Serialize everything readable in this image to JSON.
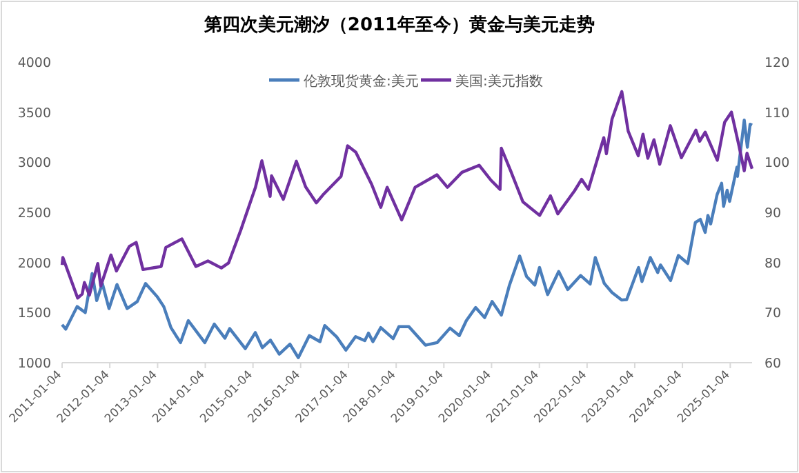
{
  "chart_data": {
    "type": "line",
    "title": "第四次美元潮汐（2011年至今）黄金与美元走势",
    "legend": "top",
    "grid": false,
    "marker": "none",
    "line_style": "solid",
    "xlim": [
      "2011-01-04",
      "2025-06-20"
    ],
    "xticks": [
      "2011-01-04",
      "2012-01-04",
      "2013-01-04",
      "2014-01-04",
      "2015-01-04",
      "2016-01-04",
      "2017-01-04",
      "2018-01-04",
      "2019-01-04",
      "2020-01-04",
      "2021-01-04",
      "2022-01-04",
      "2023-01-04",
      "2024-01-04",
      "2025-01-04"
    ],
    "ylim": [
      1000,
      4000
    ],
    "yticks": [
      1000,
      1500,
      2000,
      2500,
      3000,
      3500,
      4000
    ],
    "y2lim": [
      60,
      120
    ],
    "y2ticks": [
      60,
      70,
      80,
      90,
      100,
      110,
      120
    ],
    "series": [
      {
        "name": "伦敦现货黄金:美元",
        "color": "#4a7ebb",
        "x": [
          "2011-01-04",
          "2011-02-01",
          "2011-04-29",
          "2011-06-30",
          "2011-08-22",
          "2011-09-26",
          "2011-11-08",
          "2011-12-29",
          "2012-02-28",
          "2012-05-16",
          "2012-08-01",
          "2012-10-04",
          "2012-12-31",
          "2013-02-20",
          "2013-04-16",
          "2013-06-28",
          "2013-08-27",
          "2013-12-31",
          "2014-03-14",
          "2014-06-03",
          "2014-07-10",
          "2014-11-06",
          "2015-01-22",
          "2015-03-17",
          "2015-05-18",
          "2015-07-24",
          "2015-10-14",
          "2015-12-17",
          "2016-03-10",
          "2016-05-31",
          "2016-07-06",
          "2016-10-07",
          "2016-12-15",
          "2017-02-27",
          "2017-05-09",
          "2017-06-06",
          "2017-07-10",
          "2017-09-08",
          "2017-12-12",
          "2018-01-25",
          "2018-04-11",
          "2018-08-16",
          "2018-11-13",
          "2019-02-20",
          "2019-05-02",
          "2019-06-25",
          "2019-09-04",
          "2019-11-12",
          "2020-01-08",
          "2020-03-19",
          "2020-05-18",
          "2020-08-06",
          "2020-09-28",
          "2020-11-30",
          "2021-01-05",
          "2021-03-08",
          "2021-06-01",
          "2021-08-09",
          "2021-11-16",
          "2022-01-28",
          "2022-03-08",
          "2022-05-16",
          "2022-07-14",
          "2022-09-27",
          "2022-11-03",
          "2023-02-02",
          "2023-02-28",
          "2023-05-03",
          "2023-06-29",
          "2023-07-20",
          "2023-10-05",
          "2023-12-04",
          "2024-02-14",
          "2024-04-12",
          "2024-05-20",
          "2024-06-26",
          "2024-07-17",
          "2024-08-07",
          "2024-09-26",
          "2024-10-30",
          "2024-11-14",
          "2024-12-11",
          "2024-12-30",
          "2025-02-24",
          "2025-02-28",
          "2025-04-21",
          "2025-05-15",
          "2025-06-05",
          "2025-06-20"
        ],
        "values": [
          1380,
          1335,
          1560,
          1500,
          1890,
          1620,
          1790,
          1540,
          1780,
          1540,
          1610,
          1790,
          1660,
          1560,
          1350,
          1200,
          1420,
          1200,
          1385,
          1245,
          1340,
          1140,
          1300,
          1150,
          1225,
          1085,
          1185,
          1050,
          1270,
          1210,
          1370,
          1255,
          1125,
          1260,
          1220,
          1295,
          1210,
          1350,
          1240,
          1360,
          1360,
          1175,
          1200,
          1345,
          1270,
          1420,
          1550,
          1450,
          1610,
          1475,
          1765,
          2065,
          1860,
          1775,
          1950,
          1680,
          1910,
          1730,
          1870,
          1785,
          2050,
          1790,
          1700,
          1625,
          1630,
          1950,
          1810,
          2050,
          1900,
          1975,
          1820,
          2070,
          1990,
          2400,
          2430,
          2300,
          2470,
          2385,
          2680,
          2790,
          2560,
          2720,
          2610,
          2950,
          2860,
          3420,
          3150,
          3380,
          3370
        ]
      },
      {
        "name": "美国:美元指数",
        "color": "#7030a0",
        "axis": "y2",
        "x": [
          "2011-01-04",
          "2011-01-10",
          "2011-05-03",
          "2011-06-07",
          "2011-06-24",
          "2011-08-01",
          "2011-10-04",
          "2011-10-27",
          "2012-01-13",
          "2012-02-24",
          "2012-06-01",
          "2012-07-24",
          "2012-09-14",
          "2013-01-31",
          "2013-03-08",
          "2013-07-09",
          "2013-10-24",
          "2014-01-24",
          "2014-05-07",
          "2014-07-01",
          "2014-10-03",
          "2015-01-23",
          "2015-03-13",
          "2015-05-15",
          "2015-05-26",
          "2015-08-24",
          "2015-12-02",
          "2016-02-11",
          "2016-05-03",
          "2016-06-23",
          "2016-11-08",
          "2016-12-28",
          "2017-03-01",
          "2017-06-30",
          "2017-09-08",
          "2017-10-27",
          "2018-02-15",
          "2018-05-29",
          "2018-11-12",
          "2019-01-31",
          "2019-05-23",
          "2019-10-01",
          "2019-12-31",
          "2020-03-09",
          "2020-03-19",
          "2020-05-29",
          "2020-08-31",
          "2021-01-06",
          "2021-03-30",
          "2021-05-25",
          "2021-09-30",
          "2021-11-23",
          "2022-01-14",
          "2022-05-12",
          "2022-06-01",
          "2022-07-14",
          "2022-09-27",
          "2022-11-15",
          "2023-01-31",
          "2023-03-08",
          "2023-04-14",
          "2023-05-31",
          "2023-07-14",
          "2023-10-03",
          "2023-12-27",
          "2024-04-16",
          "2024-05-15",
          "2024-06-26",
          "2024-09-27",
          "2024-11-22",
          "2025-01-13",
          "2025-03-10",
          "2025-04-21",
          "2025-05-12",
          "2025-06-20"
        ],
        "values": [
          79.5,
          81,
          72.9,
          73.7,
          76,
          73.5,
          79.8,
          75.3,
          81.5,
          78.3,
          83.2,
          84,
          78.6,
          79.2,
          83,
          84.7,
          79.2,
          80.3,
          78.9,
          79.9,
          86.5,
          95,
          100.3,
          93.2,
          97.3,
          92.6,
          100.2,
          95.1,
          91.9,
          93.5,
          97.2,
          103.3,
          102,
          95.6,
          91,
          95,
          88.5,
          95,
          97.5,
          95,
          98,
          99.4,
          96.4,
          94.6,
          102.8,
          98.3,
          92.1,
          89.4,
          93.3,
          89.7,
          94.3,
          96.6,
          94.6,
          104.9,
          101.7,
          108.6,
          114.1,
          106.2,
          101.3,
          105.6,
          100.8,
          104.5,
          99.6,
          107.3,
          100.9,
          106.4,
          104.2,
          106,
          100.4,
          108,
          110,
          103.5,
          98.3,
          101.8,
          98.7
        ]
      }
    ]
  }
}
